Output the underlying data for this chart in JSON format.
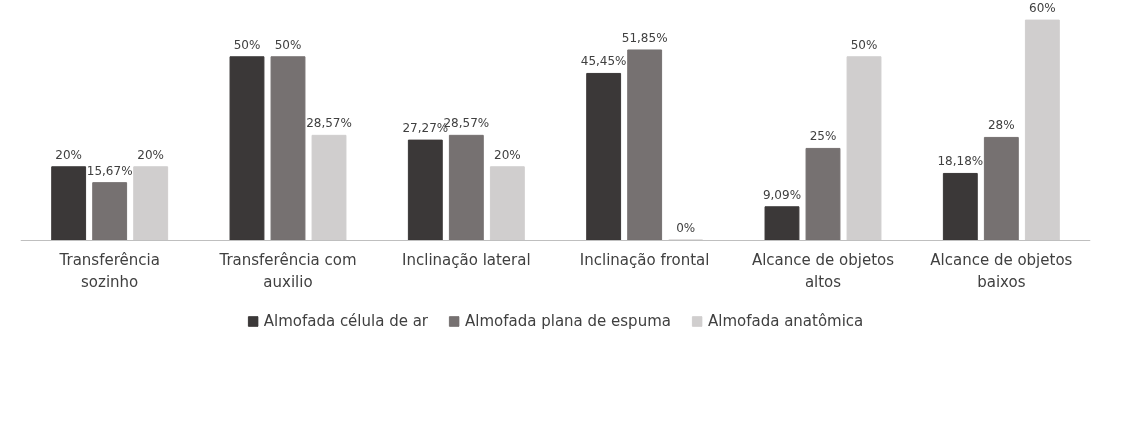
{
  "chart_data": {
    "type": "bar",
    "categories": [
      "Transferência sozinho",
      "Transferência com auxilio",
      "Inclinação lateral",
      "Inclinação frontal",
      "Alcance de objetos altos",
      "Alcance de objetos baixos"
    ],
    "series": [
      {
        "name": "Almofada célula de ar",
        "color": "#3b3838",
        "values": [
          20,
          50,
          27.27,
          45.45,
          9.09,
          18.18
        ],
        "value_labels": [
          "20%",
          "50%",
          "27,27%",
          "45,45%",
          "9,09%",
          "18,18%"
        ]
      },
      {
        "name": "Almofada plana de espuma",
        "color": "#767171",
        "values": [
          15.67,
          50,
          28.57,
          51.85,
          25,
          28
        ],
        "value_labels": [
          "15,67%",
          "50%",
          "28,57%",
          "51,85%",
          "25%",
          "28%"
        ]
      },
      {
        "name": "Almofada anatômica",
        "color": "#d0cece",
        "values": [
          20,
          28.57,
          20,
          0,
          50,
          60
        ],
        "value_labels": [
          "20%",
          "28,57%",
          "20%",
          "0%",
          "50%",
          "60%"
        ]
      }
    ],
    "legend": "bottom"
  }
}
